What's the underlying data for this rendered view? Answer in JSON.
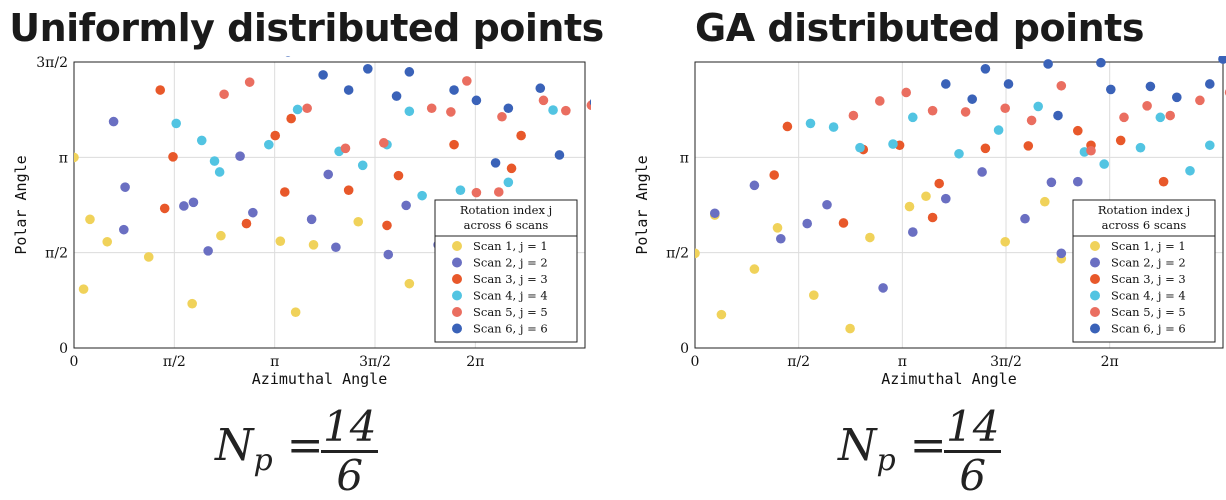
{
  "chart_data": [
    {
      "type": "scatter",
      "title": "Uniformly distributed points",
      "xlabel": "Azimuthal Angle",
      "ylabel": "Polar Angle",
      "xlim": [
        0,
        8
      ],
      "ylim": [
        0,
        4.712
      ],
      "xticks": [
        {
          "v": 0,
          "label": "0"
        },
        {
          "v": 1.5708,
          "label": "π/2"
        },
        {
          "v": 3.1416,
          "label": "π"
        },
        {
          "v": 4.7124,
          "label": "3π/2"
        },
        {
          "v": 6.2832,
          "label": "2π"
        }
      ],
      "yticks": [
        {
          "v": 0,
          "label": "0"
        },
        {
          "v": 1.5708,
          "label": "π/2"
        },
        {
          "v": 3.1416,
          "label": "π"
        },
        {
          "v": 4.7124,
          "label": "3π/2"
        }
      ],
      "grid": true,
      "legend": {
        "placement": "lower-right",
        "title_line1": "Rotation index j",
        "title_line2": "across 6 scans",
        "entries": [
          "Scan 1, j = 1",
          "Scan 2, j = 2",
          "Scan 3, j = 3",
          "Scan 4, j = 4",
          "Scan 5, j = 5",
          "Scan 6, j = 6"
        ]
      },
      "formula": {
        "lhs": "N",
        "sub": "p",
        "eq": "=",
        "num": "14",
        "den": "6"
      },
      "series": [
        {
          "name": "Scan 1, j = 1",
          "color": "#f0d25a",
          "points": [
            [
              0.0,
              3.14
            ],
            [
              0.52,
              1.75
            ],
            [
              0.15,
              0.97
            ],
            [
              1.17,
              1.5
            ],
            [
              0.25,
              2.12
            ],
            [
              1.85,
              0.73
            ],
            [
              2.3,
              1.85
            ],
            [
              3.23,
              1.76
            ],
            [
              4.45,
              2.08
            ],
            [
              5.25,
              1.06
            ],
            [
              5.75,
              1.78
            ],
            [
              3.75,
              1.7
            ],
            [
              6.35,
              2.2
            ],
            [
              3.47,
              0.59
            ]
          ]
        },
        {
          "name": "Scan 2, j = 2",
          "color": "#6a6fc2",
          "points": [
            [
              0.62,
              3.73
            ],
            [
              0.8,
              2.65
            ],
            [
              1.72,
              2.34
            ],
            [
              1.87,
              2.4
            ],
            [
              0.78,
              1.95
            ],
            [
              2.1,
              1.6
            ],
            [
              2.6,
              3.16
            ],
            [
              2.8,
              2.23
            ],
            [
              3.72,
              2.12
            ],
            [
              3.98,
              2.86
            ],
            [
              4.1,
              1.66
            ],
            [
              4.92,
              1.54
            ],
            [
              5.2,
              2.35
            ],
            [
              5.7,
              1.7
            ]
          ]
        },
        {
          "name": "Scan 3, j = 3",
          "color": "#e8582a",
          "points": [
            [
              1.35,
              4.25
            ],
            [
              1.55,
              3.15
            ],
            [
              1.42,
              2.3
            ],
            [
              2.7,
              2.05
            ],
            [
              3.3,
              2.57
            ],
            [
              3.15,
              3.5
            ],
            [
              3.4,
              3.78
            ],
            [
              4.3,
              2.6
            ],
            [
              4.9,
              2.02
            ],
            [
              5.08,
              2.84
            ],
            [
              6.1,
              2.12
            ],
            [
              6.85,
              2.96
            ],
            [
              5.95,
              3.35
            ],
            [
              7.0,
              3.5
            ]
          ]
        },
        {
          "name": "Scan 4, j = 4",
          "color": "#52c4e2",
          "points": [
            [
              1.6,
              3.7
            ],
            [
              2.0,
              3.42
            ],
            [
              2.28,
              2.9
            ],
            [
              2.2,
              3.08
            ],
            [
              3.05,
              3.35
            ],
            [
              3.5,
              3.93
            ],
            [
              4.15,
              3.24
            ],
            [
              4.52,
              3.01
            ],
            [
              4.9,
              3.35
            ],
            [
              5.25,
              3.9
            ],
            [
              5.45,
              2.51
            ],
            [
              6.05,
              2.6
            ],
            [
              7.5,
              3.92
            ],
            [
              6.8,
              2.73
            ]
          ]
        },
        {
          "name": "Scan 5, j = 5",
          "color": "#ea6e60",
          "points": [
            [
              2.35,
              4.18
            ],
            [
              2.75,
              4.38
            ],
            [
              3.65,
              3.95
            ],
            [
              4.25,
              3.29
            ],
            [
              4.85,
              3.38
            ],
            [
              5.6,
              3.95
            ],
            [
              6.15,
              4.4
            ],
            [
              5.9,
              3.89
            ],
            [
              6.7,
              3.81
            ],
            [
              7.35,
              4.08
            ],
            [
              7.7,
              3.91
            ],
            [
              6.3,
              2.56
            ],
            [
              6.65,
              2.57
            ],
            [
              8.1,
              4.0
            ]
          ]
        },
        {
          "name": "Scan 6, j = 6",
          "color": "#3a62b8",
          "points": [
            [
              3.35,
              4.88
            ],
            [
              3.9,
              4.5
            ],
            [
              4.3,
              4.25
            ],
            [
              5.25,
              4.55
            ],
            [
              5.95,
              4.25
            ],
            [
              7.3,
              4.28
            ],
            [
              7.6,
              3.18
            ],
            [
              8.15,
              4.05
            ],
            [
              4.6,
              4.6
            ],
            [
              5.05,
              4.15
            ],
            [
              6.3,
              4.08
            ],
            [
              6.6,
              3.05
            ],
            [
              6.8,
              3.95
            ],
            [
              8.6,
              4.4
            ]
          ]
        }
      ]
    },
    {
      "type": "scatter",
      "title": "GA distributed points",
      "xlabel": "Azimuthal Angle",
      "ylabel": "Polar Angle",
      "xlim": [
        0,
        8
      ],
      "ylim": [
        0,
        4.712
      ],
      "xticks": [
        {
          "v": 0,
          "label": "0"
        },
        {
          "v": 1.5708,
          "label": "π/2"
        },
        {
          "v": 3.1416,
          "label": "π"
        },
        {
          "v": 4.7124,
          "label": "3π/2"
        },
        {
          "v": 6.2832,
          "label": "2π"
        }
      ],
      "yticks": [
        {
          "v": 0,
          "label": "0"
        },
        {
          "v": 1.5708,
          "label": "π/2"
        },
        {
          "v": 3.1416,
          "label": "π"
        }
      ],
      "grid": true,
      "legend": {
        "placement": "lower-right",
        "title_line1": "Rotation index j",
        "title_line2": "across 6 scans",
        "entries": [
          "Scan 1, j = 1",
          "Scan 2, j = 2",
          "Scan 3, j = 3",
          "Scan 4, j = 4",
          "Scan 5, j = 5",
          "Scan 6, j = 6"
        ]
      },
      "formula": {
        "lhs": "N",
        "sub": "p",
        "eq": "=",
        "num": "14",
        "den": "6"
      },
      "series": [
        {
          "name": "Scan 1, j = 1",
          "color": "#f0d25a",
          "points": [
            [
              0.0,
              1.56
            ],
            [
              0.3,
              2.19
            ],
            [
              0.4,
              0.55
            ],
            [
              0.9,
              1.3
            ],
            [
              1.25,
              1.98
            ],
            [
              1.8,
              0.87
            ],
            [
              2.35,
              0.32
            ],
            [
              2.65,
              1.82
            ],
            [
              3.25,
              2.33
            ],
            [
              3.5,
              2.5
            ],
            [
              4.7,
              1.75
            ],
            [
              5.3,
              2.41
            ],
            [
              5.55,
              1.47
            ],
            [
              5.9,
              0.83
            ]
          ]
        },
        {
          "name": "Scan 2, j = 2",
          "color": "#6a6fc2",
          "points": [
            [
              0.3,
              2.22
            ],
            [
              0.9,
              2.68
            ],
            [
              1.3,
              1.8
            ],
            [
              1.7,
              2.05
            ],
            [
              2.0,
              2.36
            ],
            [
              2.85,
              0.99
            ],
            [
              3.3,
              1.91
            ],
            [
              3.8,
              2.46
            ],
            [
              4.35,
              2.9
            ],
            [
              5.0,
              2.13
            ],
            [
              5.4,
              2.73
            ],
            [
              5.55,
              1.56
            ],
            [
              5.8,
              2.74
            ],
            [
              6.2,
              2.26
            ]
          ]
        },
        {
          "name": "Scan 3, j = 3",
          "color": "#e8582a",
          "points": [
            [
              1.2,
              2.85
            ],
            [
              1.4,
              3.65
            ],
            [
              2.25,
              2.06
            ],
            [
              2.55,
              3.27
            ],
            [
              3.1,
              3.34
            ],
            [
              3.6,
              2.15
            ],
            [
              3.7,
              2.71
            ],
            [
              4.4,
              3.29
            ],
            [
              5.05,
              3.33
            ],
            [
              5.8,
              3.58
            ],
            [
              6.0,
              3.34
            ],
            [
              6.45,
              3.42
            ],
            [
              6.75,
              2.26
            ],
            [
              7.1,
              2.74
            ]
          ]
        },
        {
          "name": "Scan 4, j = 4",
          "color": "#52c4e2",
          "points": [
            [
              1.75,
              3.7
            ],
            [
              2.1,
              3.64
            ],
            [
              2.5,
              3.3
            ],
            [
              3.0,
              3.36
            ],
            [
              3.3,
              3.8
            ],
            [
              4.0,
              3.2
            ],
            [
              4.6,
              3.59
            ],
            [
              5.2,
              3.98
            ],
            [
              5.9,
              3.23
            ],
            [
              6.2,
              3.03
            ],
            [
              6.75,
              3.3
            ],
            [
              7.05,
              3.8
            ],
            [
              7.5,
              2.92
            ],
            [
              7.8,
              3.34
            ]
          ]
        },
        {
          "name": "Scan 5, j = 5",
          "color": "#ea6e60",
          "points": [
            [
              2.4,
              3.83
            ],
            [
              2.8,
              4.07
            ],
            [
              3.2,
              4.21
            ],
            [
              3.6,
              3.91
            ],
            [
              4.1,
              3.89
            ],
            [
              4.7,
              3.95
            ],
            [
              5.1,
              3.75
            ],
            [
              5.55,
              4.32
            ],
            [
              6.0,
              3.25
            ],
            [
              6.5,
              3.8
            ],
            [
              6.85,
              3.99
            ],
            [
              7.2,
              3.83
            ],
            [
              7.65,
              4.08
            ],
            [
              8.1,
              4.21
            ]
          ]
        },
        {
          "name": "Scan 6, j = 6",
          "color": "#3a62b8",
          "points": [
            [
              3.8,
              4.35
            ],
            [
              4.2,
              4.1
            ],
            [
              4.75,
              4.35
            ],
            [
              5.5,
              3.83
            ],
            [
              6.3,
              4.26
            ],
            [
              6.9,
              4.31
            ],
            [
              7.3,
              4.13
            ],
            [
              7.8,
              4.35
            ],
            [
              8.3,
              4.48
            ],
            [
              8.7,
              4.1
            ],
            [
              4.4,
              4.6
            ],
            [
              5.35,
              4.68
            ],
            [
              6.15,
              4.7
            ],
            [
              8.0,
              4.76
            ]
          ]
        }
      ]
    }
  ]
}
